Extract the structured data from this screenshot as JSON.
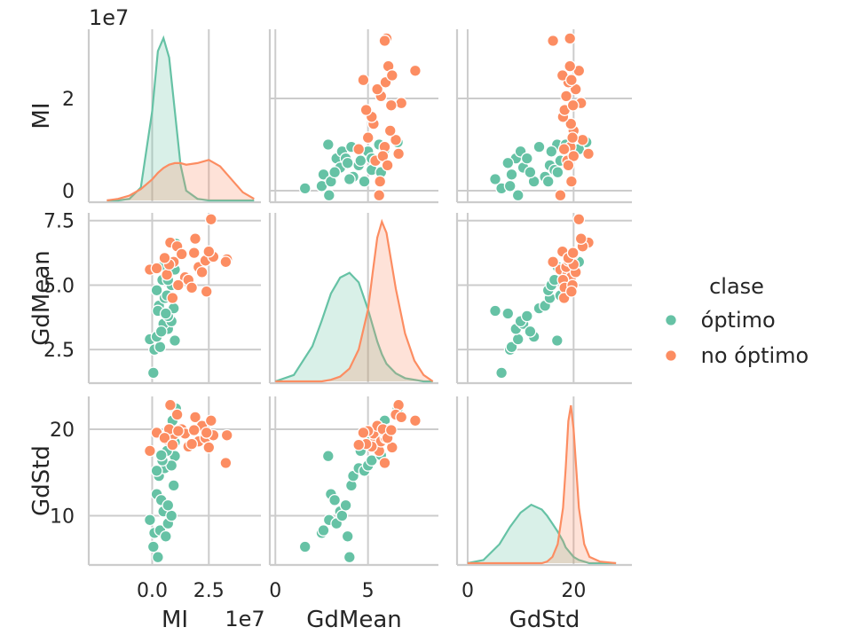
{
  "chart_data": {
    "type": "scatter",
    "kind": "pairplot",
    "variables": [
      "MI",
      "GdMean",
      "GdStd"
    ],
    "legend": {
      "title": "clase",
      "placement": "right",
      "entries": [
        {
          "label": " óptimo",
          "color": "#66c2a5"
        },
        {
          "label": " no óptimo",
          "color": "#fc8d62"
        }
      ]
    },
    "axes": {
      "MI": {
        "label": "MI",
        "offset_label": "1e7",
        "lim": [
          -2.8,
          4.8
        ],
        "ticks": [
          {
            "v": 0.0,
            "t": "0.0"
          },
          {
            "v": 2.5,
            "t": "2.5"
          }
        ],
        "row_lim": [
          -0.25,
          3.5
        ],
        "row_ticks": [
          {
            "v": 0,
            "t": "0"
          },
          {
            "v": 2,
            "t": "2"
          }
        ]
      },
      "GdMean": {
        "label": "GdMean",
        "lim": [
          -0.3,
          8.8
        ],
        "ticks": [
          {
            "v": 0,
            "t": "0"
          },
          {
            "v": 5,
            "t": "5"
          }
        ],
        "row_lim": [
          1.2,
          7.8
        ],
        "row_ticks": [
          {
            "v": 2.5,
            "t": "2.5"
          },
          {
            "v": 5.0,
            "t": "5.0"
          },
          {
            "v": 7.5,
            "t": "7.5"
          }
        ]
      },
      "GdStd": {
        "label": "GdStd",
        "lim": [
          -2,
          31
        ],
        "ticks": [
          {
            "v": 0,
            "t": "0"
          },
          {
            "v": 20,
            "t": "20"
          }
        ],
        "row_lim": [
          4.3,
          23.8
        ],
        "row_ticks": [
          {
            "v": 10,
            "t": "10"
          },
          {
            "v": 20,
            "t": "20"
          }
        ]
      }
    },
    "series": [
      {
        "name": " óptimo",
        "color": "#66c2a5",
        "points": [
          {
            "MI": 0.05,
            "GdMean": 1.6,
            "GdStd": 6.4
          },
          {
            "MI": 0.1,
            "GdMean": 2.5,
            "GdStd": 8.0
          },
          {
            "MI": 0.35,
            "GdMean": 2.6,
            "GdStd": 8.3
          },
          {
            "MI": -0.1,
            "GdMean": 2.9,
            "GdStd": 9.5
          },
          {
            "MI": 0.7,
            "GdMean": 3.3,
            "GdStd": 9.1
          },
          {
            "MI": 0.5,
            "GdMean": 3.5,
            "GdStd": 10.5
          },
          {
            "MI": 0.85,
            "GdMean": 3.6,
            "GdStd": 10.0
          },
          {
            "MI": 1.0,
            "GdMean": 2.85,
            "GdStd": 16.9
          },
          {
            "MI": 0.2,
            "GdMean": 3.0,
            "GdStd": 12.5
          },
          {
            "MI": 0.4,
            "GdMean": 3.2,
            "GdStd": 11.8
          },
          {
            "MI": 0.7,
            "GdMean": 3.8,
            "GdStd": 11.2
          },
          {
            "MI": 0.95,
            "GdMean": 4.1,
            "GdStd": 13.5
          },
          {
            "MI": 0.3,
            "GdMean": 4.2,
            "GdStd": 14.6
          },
          {
            "MI": 0.55,
            "GdMean": 4.5,
            "GdStd": 15.5
          },
          {
            "MI": 0.2,
            "GdMean": 4.8,
            "GdStd": 15.2
          },
          {
            "MI": 0.85,
            "GdMean": 5.0,
            "GdStd": 15.8
          },
          {
            "MI": 0.45,
            "GdMean": 5.2,
            "GdStd": 16.4
          },
          {
            "MI": 0.65,
            "GdMean": 4.6,
            "GdStd": 17.5
          },
          {
            "MI": 1.0,
            "GdMean": 5.6,
            "GdStd": 18.5
          },
          {
            "MI": 0.4,
            "GdMean": 5.7,
            "GdStd": 17.0
          },
          {
            "MI": 0.7,
            "GdMean": 5.2,
            "GdStd": 19.2
          },
          {
            "MI": 1.05,
            "GdMean": 6.6,
            "GdStd": 22.4
          },
          {
            "MI": 0.9,
            "GdMean": 5.9,
            "GdStd": 21.0
          },
          {
            "MI": 0.25,
            "GdMean": 4.0,
            "GdStd": 5.2
          },
          {
            "MI": 0.6,
            "GdMean": 3.9,
            "GdStd": 7.6
          }
        ]
      },
      {
        "name": " no óptimo",
        "color": "#fc8d62",
        "points": [
          {
            "MI": -0.1,
            "GdMean": 5.6,
            "GdStd": 17.5
          },
          {
            "MI": 0.2,
            "GdMean": 5.65,
            "GdStd": 19.6
          },
          {
            "MI": 0.65,
            "GdMean": 5.4,
            "GdStd": 18.8
          },
          {
            "MI": 0.95,
            "GdMean": 5.9,
            "GdStd": 19.4
          },
          {
            "MI": 0.8,
            "GdMean": 6.65,
            "GdStd": 22.8
          },
          {
            "MI": 1.1,
            "GdMean": 6.5,
            "GdStd": 21.7
          },
          {
            "MI": 1.3,
            "GdMean": 6.2,
            "GdStd": 20.0
          },
          {
            "MI": 1.45,
            "GdMean": 5.3,
            "GdStd": 19.5
          },
          {
            "MI": 1.9,
            "GdMean": 6.8,
            "GdStd": 21.4
          },
          {
            "MI": 2.05,
            "GdMean": 5.7,
            "GdStd": 18.6
          },
          {
            "MI": 2.2,
            "GdMean": 5.5,
            "GdStd": 20.4
          },
          {
            "MI": 2.35,
            "GdMean": 5.95,
            "GdStd": 19.0
          },
          {
            "MI": 2.6,
            "GdMean": 7.55,
            "GdStd": 21.0
          },
          {
            "MI": 2.7,
            "GdMean": 6.1,
            "GdStd": 19.3
          },
          {
            "MI": 1.6,
            "GdMean": 5.2,
            "GdStd": 18.0
          },
          {
            "MI": 1.75,
            "GdMean": 4.9,
            "GdStd": 18.3
          },
          {
            "MI": 2.5,
            "GdMean": 6.3,
            "GdStd": 17.9
          },
          {
            "MI": 3.3,
            "GdMean": 6.0,
            "GdStd": 19.3
          },
          {
            "MI": 3.25,
            "GdMean": 5.9,
            "GdStd": 16.1
          },
          {
            "MI": 0.75,
            "GdMean": 5.8,
            "GdStd": 20.0
          },
          {
            "MI": 1.15,
            "GdMean": 5.0,
            "GdStd": 19.8
          },
          {
            "MI": 0.55,
            "GdMean": 6.05,
            "GdStd": 19.0
          },
          {
            "MI": 0.9,
            "GdMean": 4.5,
            "GdStd": 18.2
          },
          {
            "MI": 1.85,
            "GdMean": 6.25,
            "GdStd": 19.9
          },
          {
            "MI": 2.4,
            "GdMean": 4.75,
            "GdStd": 19.6
          }
        ]
      }
    ],
    "density": {
      "MI": {
        "x": [
          -2.0,
          -1.5,
          -1.0,
          -0.5,
          0.0,
          0.25,
          0.5,
          0.75,
          1.0,
          1.25,
          1.5,
          2.0,
          2.5,
          3.0,
          3.5,
          4.0,
          4.5
        ],
        " óptimo": [
          0.0,
          0.0,
          0.01,
          0.08,
          0.55,
          0.92,
          1.0,
          0.88,
          0.55,
          0.22,
          0.06,
          0.01,
          0.0,
          0.0,
          0.0,
          0.0,
          0.0
        ],
        " no óptimo": [
          0.0,
          0.01,
          0.03,
          0.07,
          0.13,
          0.17,
          0.2,
          0.22,
          0.23,
          0.23,
          0.22,
          0.23,
          0.25,
          0.21,
          0.13,
          0.05,
          0.01
        ]
      },
      "GdMean": {
        "x": [
          0.0,
          1.0,
          2.0,
          2.5,
          3.0,
          3.5,
          4.0,
          4.5,
          5.0,
          5.25,
          5.5,
          5.75,
          6.0,
          6.5,
          7.0,
          7.5,
          8.0,
          8.5
        ],
        " óptimo": [
          0.0,
          0.04,
          0.22,
          0.38,
          0.55,
          0.65,
          0.68,
          0.62,
          0.45,
          0.35,
          0.25,
          0.17,
          0.11,
          0.05,
          0.02,
          0.01,
          0.0,
          0.0
        ],
        " no óptimo": [
          0.0,
          0.0,
          0.0,
          0.0,
          0.01,
          0.03,
          0.08,
          0.2,
          0.45,
          0.68,
          0.9,
          1.0,
          0.93,
          0.58,
          0.3,
          0.13,
          0.04,
          0.0
        ]
      },
      "GdStd": {
        "x": [
          0,
          3,
          6,
          8,
          10,
          12,
          14,
          15,
          16,
          17,
          18,
          18.5,
          19,
          19.5,
          20,
          20.5,
          21,
          22,
          23,
          25,
          28
        ],
        " óptimo": [
          0.0,
          0.02,
          0.12,
          0.23,
          0.32,
          0.37,
          0.34,
          0.3,
          0.25,
          0.2,
          0.14,
          0.1,
          0.08,
          0.06,
          0.04,
          0.03,
          0.02,
          0.01,
          0.0,
          0.0,
          0.0
        ],
        " no óptimo": [
          0.0,
          0.0,
          0.0,
          0.0,
          0.0,
          0.0,
          0.0,
          0.01,
          0.04,
          0.12,
          0.35,
          0.6,
          0.9,
          1.0,
          0.85,
          0.6,
          0.35,
          0.12,
          0.04,
          0.01,
          0.0
        ]
      }
    }
  }
}
